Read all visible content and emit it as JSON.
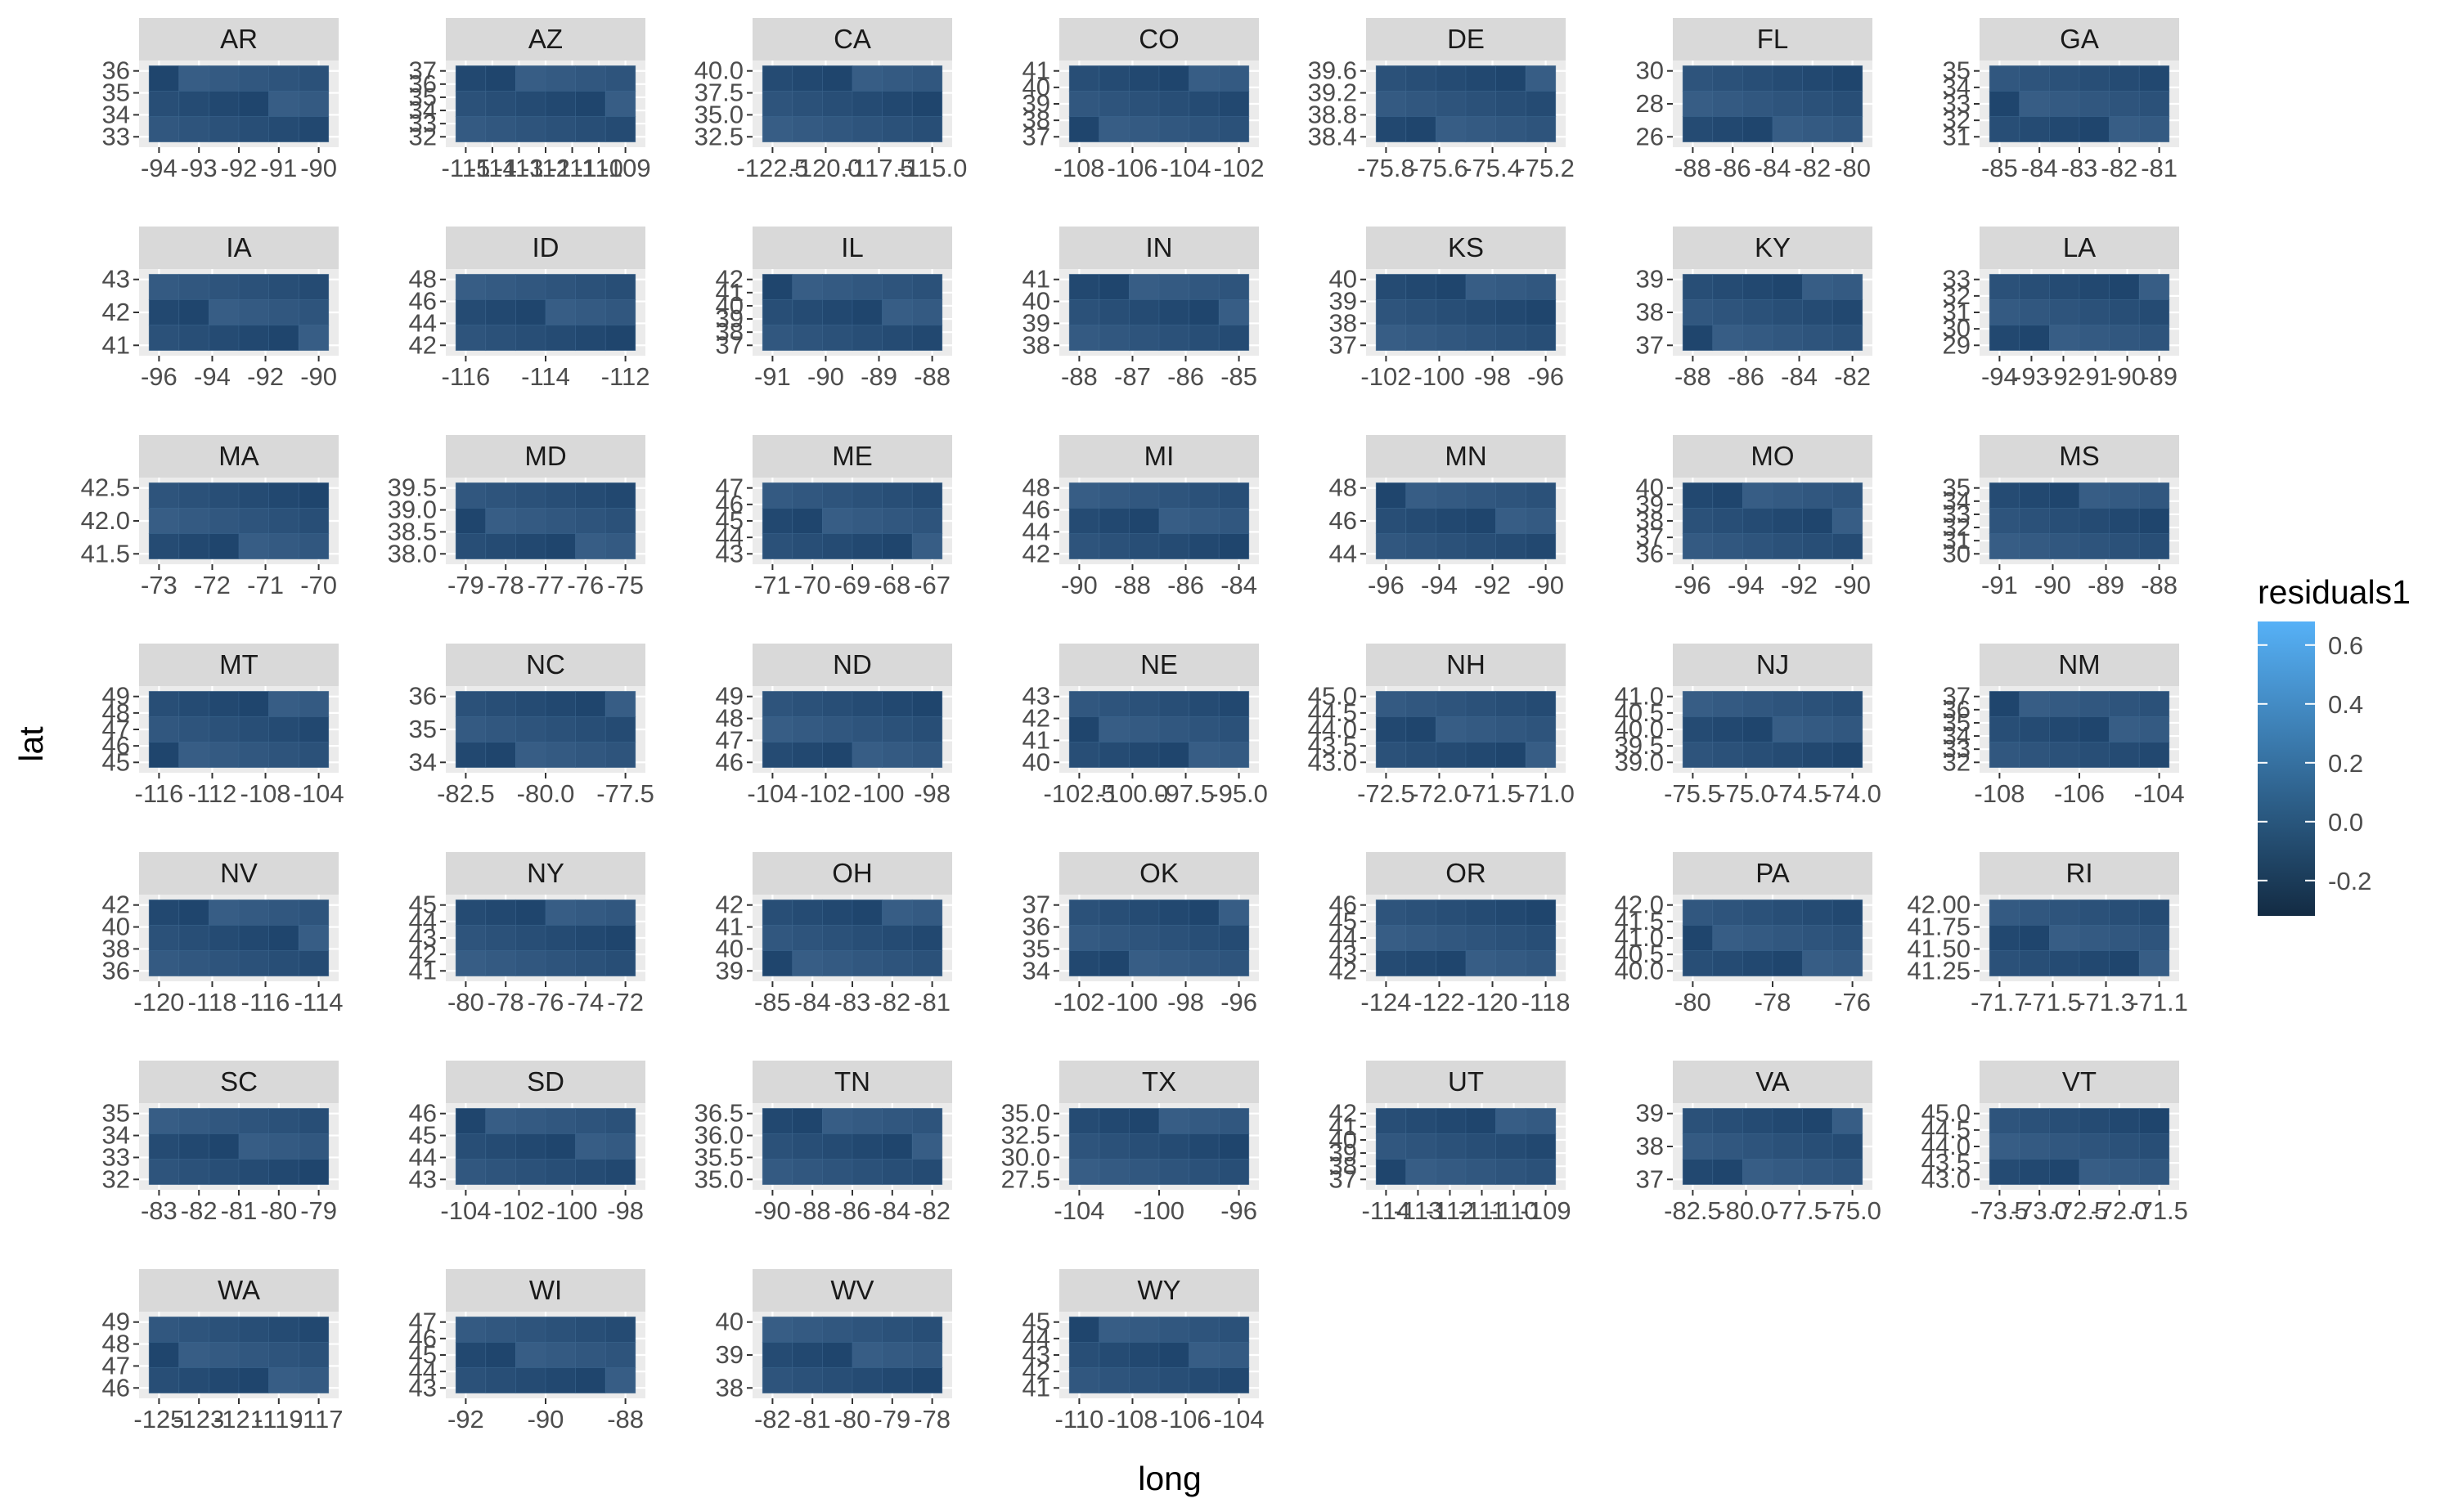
{
  "chart_data": {
    "type": "faceted-choropleth",
    "xlabel": "long",
    "ylabel": "lat",
    "legend": {
      "title": "residuals1",
      "position": "right",
      "ticks": [
        "0.6",
        "0.4",
        "0.2",
        "0.0",
        "-0.2"
      ],
      "tick_values": [
        0.6,
        0.4,
        0.2,
        0.0,
        -0.2
      ],
      "range": [
        -0.32,
        0.68
      ],
      "low_color": "#132B43",
      "high_color": "#56B1F7"
    },
    "grid": true,
    "panel_background": "#EBEBEB",
    "strip_background": "#D9D9D9",
    "fill_color": "#2B5179",
    "facets": [
      {
        "state": "AR",
        "x_ticks": [
          "-94",
          "-93",
          "-92",
          "-91",
          "-90"
        ],
        "y_ticks": [
          "36",
          "35",
          "34",
          "33"
        ]
      },
      {
        "state": "AZ",
        "x_ticks": [
          "-115",
          "-114",
          "-113",
          "-112",
          "-111",
          "-110",
          "-109"
        ],
        "y_ticks": [
          "37",
          "36",
          "35",
          "34",
          "33",
          "32"
        ]
      },
      {
        "state": "CA",
        "x_ticks": [
          "-122.5",
          "-120.0",
          "-117.5",
          "-115.0"
        ],
        "y_ticks": [
          "40.0",
          "37.5",
          "35.0",
          "32.5"
        ]
      },
      {
        "state": "CO",
        "x_ticks": [
          "-108",
          "-106",
          "-104",
          "-102"
        ],
        "y_ticks": [
          "41",
          "40",
          "39",
          "38",
          "37"
        ]
      },
      {
        "state": "DE",
        "x_ticks": [
          "-75.8",
          "-75.6",
          "-75.4",
          "-75.2"
        ],
        "y_ticks": [
          "39.6",
          "39.2",
          "38.8",
          "38.4"
        ]
      },
      {
        "state": "FL",
        "x_ticks": [
          "-88",
          "-86",
          "-84",
          "-82",
          "-80"
        ],
        "y_ticks": [
          "30",
          "28",
          "26"
        ]
      },
      {
        "state": "GA",
        "x_ticks": [
          "-85",
          "-84",
          "-83",
          "-82",
          "-81"
        ],
        "y_ticks": [
          "35",
          "34",
          "33",
          "32",
          "31"
        ]
      },
      {
        "state": "IA",
        "x_ticks": [
          "-96",
          "-94",
          "-92",
          "-90"
        ],
        "y_ticks": [
          "43",
          "42",
          "41"
        ]
      },
      {
        "state": "ID",
        "x_ticks": [
          "-116",
          "-114",
          "-112"
        ],
        "y_ticks": [
          "48",
          "46",
          "44",
          "42"
        ]
      },
      {
        "state": "IL",
        "x_ticks": [
          "-91",
          "-90",
          "-89",
          "-88"
        ],
        "y_ticks": [
          "42",
          "41",
          "40",
          "39",
          "38",
          "37"
        ]
      },
      {
        "state": "IN",
        "x_ticks": [
          "-88",
          "-87",
          "-86",
          "-85"
        ],
        "y_ticks": [
          "41",
          "40",
          "39",
          "38"
        ]
      },
      {
        "state": "KS",
        "x_ticks": [
          "-102",
          "-100",
          "-98",
          "-96"
        ],
        "y_ticks": [
          "40",
          "39",
          "38",
          "37"
        ]
      },
      {
        "state": "KY",
        "x_ticks": [
          "-88",
          "-86",
          "-84",
          "-82"
        ],
        "y_ticks": [
          "39",
          "38",
          "37"
        ]
      },
      {
        "state": "LA",
        "x_ticks": [
          "-94",
          "-93",
          "-92",
          "-91",
          "-90",
          "-89"
        ],
        "y_ticks": [
          "33",
          "32",
          "31",
          "30",
          "29"
        ]
      },
      {
        "state": "MA",
        "x_ticks": [
          "-73",
          "-72",
          "-71",
          "-70"
        ],
        "y_ticks": [
          "42.5",
          "42.0",
          "41.5"
        ]
      },
      {
        "state": "MD",
        "x_ticks": [
          "-79",
          "-78",
          "-77",
          "-76",
          "-75"
        ],
        "y_ticks": [
          "39.5",
          "39.0",
          "38.5",
          "38.0"
        ]
      },
      {
        "state": "ME",
        "x_ticks": [
          "-71",
          "-70",
          "-69",
          "-68",
          "-67"
        ],
        "y_ticks": [
          "47",
          "46",
          "45",
          "44",
          "43"
        ]
      },
      {
        "state": "MI",
        "x_ticks": [
          "-90",
          "-88",
          "-86",
          "-84"
        ],
        "y_ticks": [
          "48",
          "46",
          "44",
          "42"
        ]
      },
      {
        "state": "MN",
        "x_ticks": [
          "-96",
          "-94",
          "-92",
          "-90"
        ],
        "y_ticks": [
          "48",
          "46",
          "44"
        ]
      },
      {
        "state": "MO",
        "x_ticks": [
          "-96",
          "-94",
          "-92",
          "-90"
        ],
        "y_ticks": [
          "40",
          "39",
          "38",
          "37",
          "36"
        ]
      },
      {
        "state": "MS",
        "x_ticks": [
          "-91",
          "-90",
          "-89",
          "-88"
        ],
        "y_ticks": [
          "35",
          "34",
          "33",
          "32",
          "31",
          "30"
        ]
      },
      {
        "state": "MT",
        "x_ticks": [
          "-116",
          "-112",
          "-108",
          "-104"
        ],
        "y_ticks": [
          "49",
          "48",
          "47",
          "46",
          "45"
        ]
      },
      {
        "state": "NC",
        "x_ticks": [
          "-82.5",
          "-80.0",
          "-77.5"
        ],
        "y_ticks": [
          "36",
          "35",
          "34"
        ]
      },
      {
        "state": "ND",
        "x_ticks": [
          "-104",
          "-102",
          "-100",
          "-98"
        ],
        "y_ticks": [
          "49",
          "48",
          "47",
          "46"
        ]
      },
      {
        "state": "NE",
        "x_ticks": [
          "-102.5",
          "-100.0",
          "-97.5",
          "-95.0"
        ],
        "y_ticks": [
          "43",
          "42",
          "41",
          "40"
        ]
      },
      {
        "state": "NH",
        "x_ticks": [
          "-72.5",
          "-72.0",
          "-71.5",
          "-71.0"
        ],
        "y_ticks": [
          "45.0",
          "44.5",
          "44.0",
          "43.5",
          "43.0"
        ]
      },
      {
        "state": "NJ",
        "x_ticks": [
          "-75.5",
          "-75.0",
          "-74.5",
          "-74.0"
        ],
        "y_ticks": [
          "41.0",
          "40.5",
          "40.0",
          "39.5",
          "39.0"
        ]
      },
      {
        "state": "NM",
        "x_ticks": [
          "-108",
          "-106",
          "-104"
        ],
        "y_ticks": [
          "37",
          "36",
          "35",
          "34",
          "33",
          "32"
        ]
      },
      {
        "state": "NV",
        "x_ticks": [
          "-120",
          "-118",
          "-116",
          "-114"
        ],
        "y_ticks": [
          "42",
          "40",
          "38",
          "36"
        ]
      },
      {
        "state": "NY",
        "x_ticks": [
          "-80",
          "-78",
          "-76",
          "-74",
          "-72"
        ],
        "y_ticks": [
          "45",
          "44",
          "43",
          "42",
          "41"
        ]
      },
      {
        "state": "OH",
        "x_ticks": [
          "-85",
          "-84",
          "-83",
          "-82",
          "-81"
        ],
        "y_ticks": [
          "42",
          "41",
          "40",
          "39"
        ]
      },
      {
        "state": "OK",
        "x_ticks": [
          "-102",
          "-100",
          "-98",
          "-96"
        ],
        "y_ticks": [
          "37",
          "36",
          "35",
          "34"
        ]
      },
      {
        "state": "OR",
        "x_ticks": [
          "-124",
          "-122",
          "-120",
          "-118"
        ],
        "y_ticks": [
          "46",
          "45",
          "44",
          "43",
          "42"
        ]
      },
      {
        "state": "PA",
        "x_ticks": [
          "-80",
          "-78",
          "-76"
        ],
        "y_ticks": [
          "42.0",
          "41.5",
          "41.0",
          "40.5",
          "40.0"
        ]
      },
      {
        "state": "RI",
        "x_ticks": [
          "-71.7",
          "-71.5",
          "-71.3",
          "-71.1"
        ],
        "y_ticks": [
          "42.00",
          "41.75",
          "41.50",
          "41.25"
        ]
      },
      {
        "state": "SC",
        "x_ticks": [
          "-83",
          "-82",
          "-81",
          "-80",
          "-79"
        ],
        "y_ticks": [
          "35",
          "34",
          "33",
          "32"
        ]
      },
      {
        "state": "SD",
        "x_ticks": [
          "-104",
          "-102",
          "-100",
          "-98"
        ],
        "y_ticks": [
          "46",
          "45",
          "44",
          "43"
        ]
      },
      {
        "state": "TN",
        "x_ticks": [
          "-90",
          "-88",
          "-86",
          "-84",
          "-82"
        ],
        "y_ticks": [
          "36.5",
          "36.0",
          "35.5",
          "35.0"
        ]
      },
      {
        "state": "TX",
        "x_ticks": [
          "-104",
          "-100",
          "-96"
        ],
        "y_ticks": [
          "35.0",
          "32.5",
          "30.0",
          "27.5"
        ]
      },
      {
        "state": "UT",
        "x_ticks": [
          "-114",
          "-113",
          "-112",
          "-111",
          "-110",
          "-109"
        ],
        "y_ticks": [
          "42",
          "41",
          "40",
          "39",
          "38",
          "37"
        ]
      },
      {
        "state": "VA",
        "x_ticks": [
          "-82.5",
          "-80.0",
          "-77.5",
          "-75.0"
        ],
        "y_ticks": [
          "39",
          "38",
          "37"
        ]
      },
      {
        "state": "VT",
        "x_ticks": [
          "-73.5",
          "-73.0",
          "-72.5",
          "-72.0",
          "-71.5"
        ],
        "y_ticks": [
          "45.0",
          "44.5",
          "44.0",
          "43.5",
          "43.0"
        ]
      },
      {
        "state": "WA",
        "x_ticks": [
          "-125",
          "-123",
          "-121",
          "-119",
          "-117"
        ],
        "y_ticks": [
          "49",
          "48",
          "47",
          "46"
        ]
      },
      {
        "state": "WI",
        "x_ticks": [
          "-92",
          "-90",
          "-88"
        ],
        "y_ticks": [
          "47",
          "46",
          "45",
          "44",
          "43"
        ]
      },
      {
        "state": "WV",
        "x_ticks": [
          "-82",
          "-81",
          "-80",
          "-79",
          "-78"
        ],
        "y_ticks": [
          "40",
          "39",
          "38"
        ]
      },
      {
        "state": "WY",
        "x_ticks": [
          "-110",
          "-108",
          "-106",
          "-104"
        ],
        "y_ticks": [
          "45",
          "44",
          "43",
          "42",
          "41"
        ]
      }
    ]
  }
}
